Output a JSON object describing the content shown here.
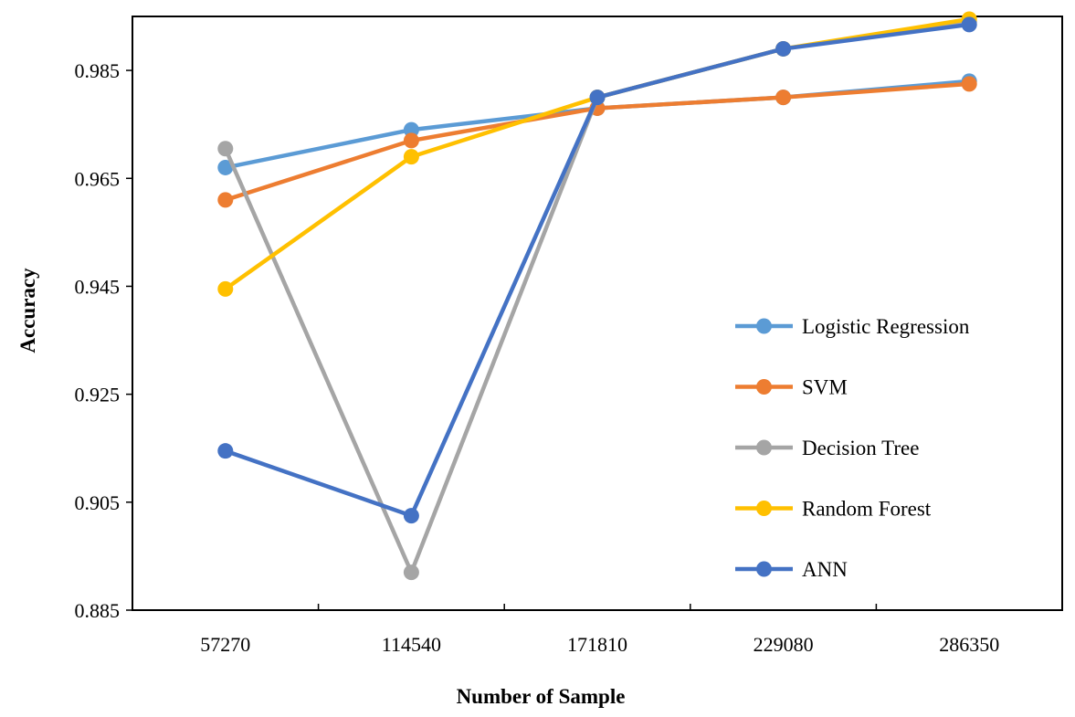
{
  "chart_data": {
    "type": "line",
    "xlabel": "Number of Sample",
    "ylabel": "Accuracy",
    "categories": [
      "57270",
      "114540",
      "171810",
      "229080",
      "286350"
    ],
    "ylim": [
      0.885,
      0.995
    ],
    "yticks": [
      "0.885",
      "0.905",
      "0.925",
      "0.945",
      "0.965",
      "0.985"
    ],
    "ytick_values": [
      0.885,
      0.905,
      0.925,
      0.945,
      0.965,
      0.985
    ],
    "legend_position": "right",
    "grid": false,
    "series": [
      {
        "name": "Logistic Regression",
        "color": "#5B9BD5",
        "values": [
          0.967,
          0.974,
          0.978,
          0.98,
          0.983
        ]
      },
      {
        "name": "SVM",
        "color": "#ED7D31",
        "values": [
          0.961,
          0.972,
          0.978,
          0.98,
          0.9825
        ]
      },
      {
        "name": "Decision Tree",
        "color": "#A5A5A5",
        "values": [
          0.9705,
          0.892,
          0.98,
          0.989,
          0.994
        ]
      },
      {
        "name": "Random Forest",
        "color": "#FFC000",
        "values": [
          0.9445,
          0.969,
          0.98,
          0.989,
          0.9945
        ]
      },
      {
        "name": "ANN",
        "color": "#4472C4",
        "values": [
          0.9145,
          0.9025,
          0.98,
          0.989,
          0.9935
        ]
      }
    ]
  }
}
